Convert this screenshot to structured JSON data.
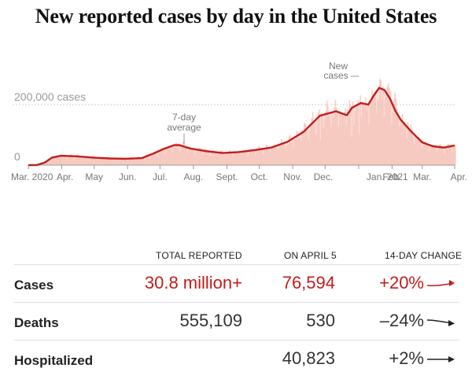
{
  "title": "New reported cases by day in the United States",
  "chart_data": {
    "type": "area",
    "title": "New reported cases by day in the United States",
    "y_gridline_label": "200,000 cases",
    "y_zero_label": "0",
    "ylim": [
      0,
      300000
    ],
    "x_labels": [
      "Mar. 2020",
      "Apr.",
      "May",
      "Jun.",
      "Jul.",
      "Aug.",
      "Sept.",
      "Oct.",
      "Nov.",
      "Dec.",
      "Jan. 2021",
      "Feb.",
      "Mar.",
      "Apr."
    ],
    "annotations": {
      "avg_line1": "7-day",
      "avg_line2": "average",
      "bars_line1": "New",
      "bars_line2": "cases"
    },
    "series": [
      {
        "name": "7-day average",
        "x": [
          0,
          8,
          15,
          22,
          30,
          45,
          60,
          75,
          90,
          105,
          115,
          125,
          135,
          140,
          150,
          165,
          180,
          195,
          210,
          225,
          240,
          255,
          270,
          285,
          295,
          300,
          308,
          315,
          320,
          325,
          330,
          335,
          340,
          345,
          355,
          365,
          375,
          385,
          395
        ],
        "values": [
          0,
          500,
          8000,
          25000,
          31000,
          29000,
          25000,
          22000,
          21000,
          23000,
          37000,
          53000,
          66000,
          66000,
          55000,
          46000,
          40000,
          43000,
          50000,
          58000,
          77000,
          110000,
          163000,
          178000,
          165000,
          190000,
          205000,
          200000,
          230000,
          255000,
          248000,
          220000,
          180000,
          150000,
          110000,
          75000,
          62000,
          58000,
          65000
        ]
      }
    ]
  },
  "stats": {
    "headers": {
      "total": "TOTAL REPORTED",
      "on_date": "ON APRIL 5",
      "change": "14-DAY CHANGE"
    },
    "rows": [
      {
        "label": "Cases",
        "total": "30.8 million+",
        "on_date": "76,594",
        "change": "+20%",
        "color": "#c51b1b"
      },
      {
        "label": "Deaths",
        "total": "555,109",
        "on_date": "530",
        "change": "–24%",
        "color": "#333333"
      },
      {
        "label": "Hospitalized",
        "total": "",
        "on_date": "40,823",
        "change": "+2%",
        "color": "#333333"
      }
    ]
  }
}
